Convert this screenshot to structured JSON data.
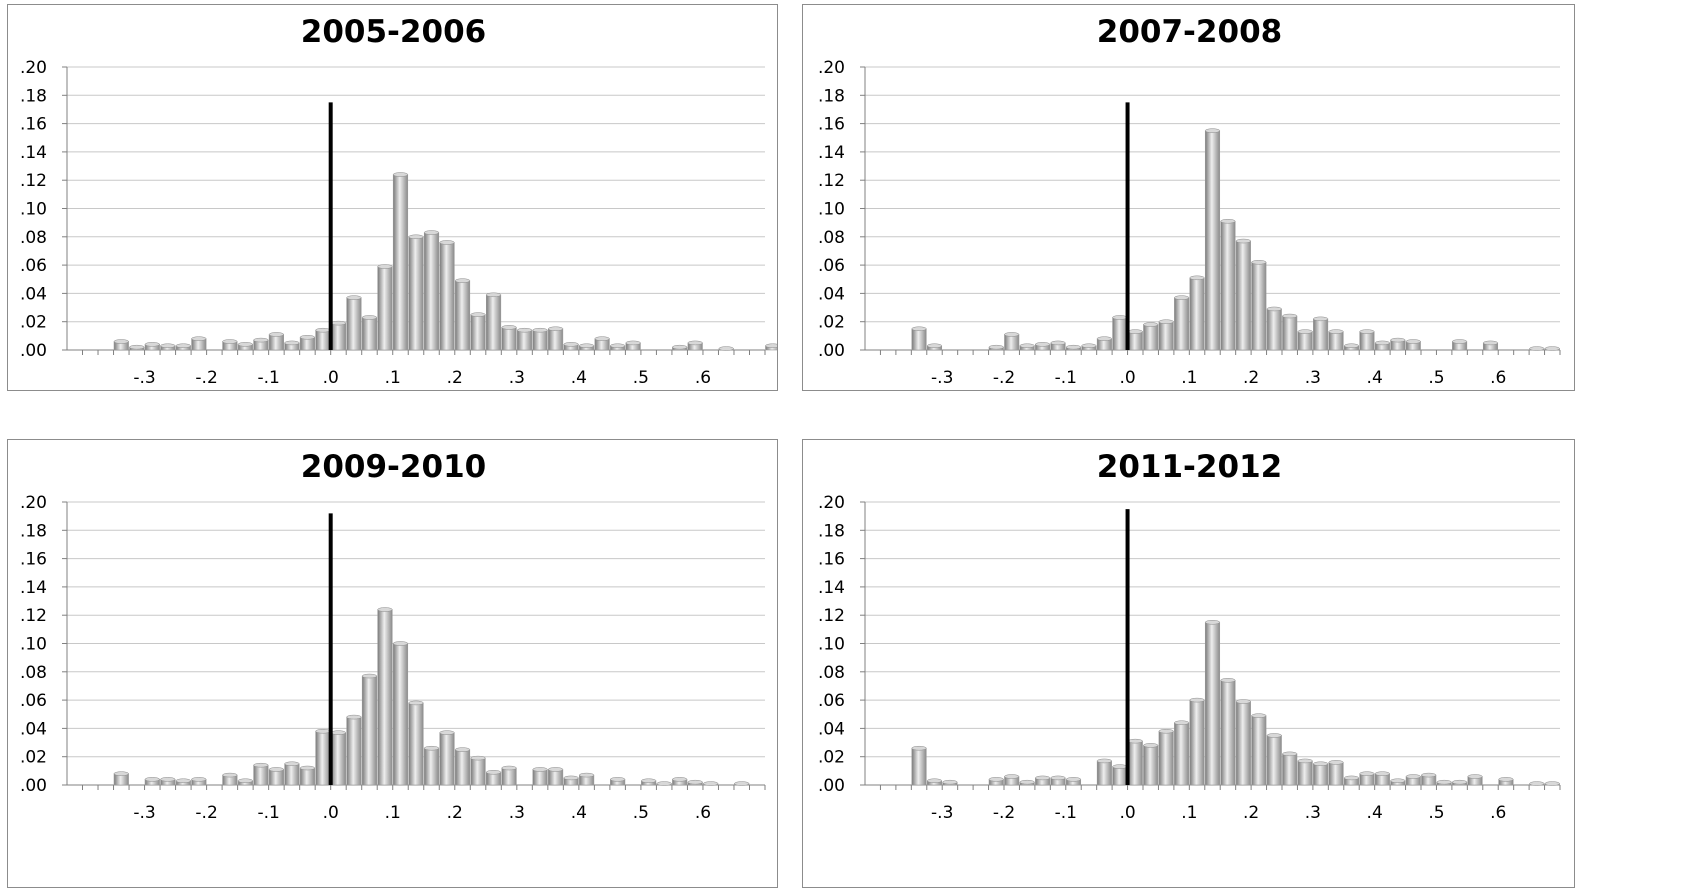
{
  "chart_data": [
    {
      "type": "bar",
      "title": "2005-2006",
      "xlabel": "",
      "ylabel": "",
      "ylim": [
        0,
        0.2
      ],
      "xlim": [
        -0.425,
        0.7
      ],
      "bin_width": 0.025,
      "x_start": -0.4,
      "y_ticks": [
        ".00",
        ".02",
        ".04",
        ".06",
        ".08",
        ".10",
        ".12",
        ".14",
        ".16",
        ".18",
        ".20"
      ],
      "x_tick_values": [
        -0.3,
        -0.2,
        -0.1,
        0.0,
        0.1,
        0.2,
        0.3,
        0.4,
        0.5,
        0.6
      ],
      "x_tick_labels": [
        "-.3",
        "-.2",
        "-.1",
        ".0",
        ".1",
        ".2",
        ".3",
        ".4",
        ".5",
        ".6"
      ],
      "reference_line": {
        "x": 0.0,
        "y_top": 0.175
      },
      "grid": true,
      "values": [
        0,
        0,
        0.006,
        0.002,
        0.004,
        0.003,
        0.003,
        0.008,
        0,
        0.006,
        0.004,
        0.007,
        0.011,
        0.005,
        0.009,
        0.014,
        0.019,
        0.037,
        0.023,
        0.059,
        0.124,
        0.08,
        0.083,
        0.076,
        0.049,
        0.025,
        0.039,
        0.016,
        0.014,
        0.014,
        0.015,
        0.004,
        0.003,
        0.008,
        0.003,
        0.005,
        0,
        0,
        0.002,
        0.005,
        0,
        0.001,
        0,
        0,
        0.003,
        0.003,
        0,
        0,
        0,
        0,
        0,
        0.005
      ]
    },
    {
      "type": "bar",
      "title": "2007-2008",
      "xlabel": "",
      "ylabel": "",
      "ylim": [
        0,
        0.2
      ],
      "xlim": [
        -0.425,
        0.7
      ],
      "bin_width": 0.025,
      "x_start": -0.4,
      "y_ticks": [
        ".00",
        ".02",
        ".04",
        ".06",
        ".08",
        ".10",
        ".12",
        ".14",
        ".16",
        ".18",
        ".20"
      ],
      "x_tick_values": [
        -0.3,
        -0.2,
        -0.1,
        0.0,
        0.1,
        0.2,
        0.3,
        0.4,
        0.5,
        0.6
      ],
      "x_tick_labels": [
        "-.3",
        "-.2",
        "-.1",
        ".0",
        ".1",
        ".2",
        ".3",
        ".4",
        ".5",
        ".6"
      ],
      "reference_line": {
        "x": 0.0,
        "y_top": 0.175
      },
      "grid": true,
      "values": [
        0,
        0,
        0.015,
        0.003,
        0,
        0,
        0,
        0.002,
        0.011,
        0.003,
        0.004,
        0.005,
        0.002,
        0.003,
        0.008,
        0.023,
        0.013,
        0.018,
        0.02,
        0.037,
        0.051,
        0.155,
        0.091,
        0.077,
        0.062,
        0.029,
        0.024,
        0.013,
        0.022,
        0.013,
        0.003,
        0.013,
        0.005,
        0.007,
        0.006,
        0,
        0,
        0.006,
        0,
        0.005,
        0,
        0,
        0.001,
        0.001,
        0,
        0,
        0.004,
        0.004,
        0,
        0,
        0.002,
        0.008
      ]
    },
    {
      "type": "bar",
      "title": "2009-2010",
      "xlabel": "",
      "ylabel": "",
      "ylim": [
        0,
        0.2
      ],
      "xlim": [
        -0.425,
        0.7
      ],
      "bin_width": 0.025,
      "x_start": -0.4,
      "y_ticks": [
        ".00",
        ".02",
        ".04",
        ".06",
        ".08",
        ".10",
        ".12",
        ".14",
        ".16",
        ".18",
        ".20"
      ],
      "x_tick_values": [
        -0.3,
        -0.2,
        -0.1,
        0.0,
        0.1,
        0.2,
        0.3,
        0.4,
        0.5,
        0.6
      ],
      "x_tick_labels": [
        "-.3",
        "-.2",
        "-.1",
        ".0",
        ".1",
        ".2",
        ".3",
        ".4",
        ".5",
        ".6"
      ],
      "reference_line": {
        "x": 0.0,
        "y_top": 0.192
      },
      "grid": true,
      "values": [
        0,
        0,
        0.008,
        0,
        0.004,
        0.004,
        0.003,
        0.004,
        0,
        0.007,
        0.003,
        0.014,
        0.011,
        0.015,
        0.012,
        0.038,
        0.037,
        0.048,
        0.077,
        0.124,
        0.1,
        0.058,
        0.026,
        0.037,
        0.025,
        0.019,
        0.009,
        0.012,
        0,
        0.011,
        0.011,
        0.005,
        0.007,
        0,
        0.004,
        0,
        0.003,
        0.001,
        0.004,
        0.002,
        0.001,
        0,
        0.001,
        0,
        0,
        0,
        0,
        0,
        0,
        0,
        0,
        0.009
      ]
    },
    {
      "type": "bar",
      "title": "2011-2012",
      "xlabel": "",
      "ylabel": "",
      "ylim": [
        0,
        0.2
      ],
      "xlim": [
        -0.425,
        0.7
      ],
      "bin_width": 0.025,
      "x_start": -0.4,
      "y_ticks": [
        ".00",
        ".02",
        ".04",
        ".06",
        ".08",
        ".10",
        ".12",
        ".14",
        ".16",
        ".18",
        ".20"
      ],
      "x_tick_values": [
        -0.3,
        -0.2,
        -0.1,
        0.0,
        0.1,
        0.2,
        0.3,
        0.4,
        0.5,
        0.6
      ],
      "x_tick_labels": [
        "-.3",
        "-.2",
        "-.1",
        ".0",
        ".1",
        ".2",
        ".3",
        ".4",
        ".5",
        ".6"
      ],
      "reference_line": {
        "x": 0.0,
        "y_top": 0.195
      },
      "grid": true,
      "values": [
        0,
        0,
        0.026,
        0.003,
        0.002,
        0,
        0,
        0.004,
        0.006,
        0.002,
        0.005,
        0.005,
        0.004,
        0,
        0.017,
        0.013,
        0.031,
        0.028,
        0.038,
        0.044,
        0.06,
        0.115,
        0.074,
        0.059,
        0.049,
        0.035,
        0.022,
        0.017,
        0.015,
        0.016,
        0.005,
        0.008,
        0.008,
        0.003,
        0.006,
        0.007,
        0.002,
        0.002,
        0.006,
        0,
        0.004,
        0,
        0.001,
        0.001,
        0,
        0,
        0,
        0,
        0,
        0,
        0,
        0.003
      ]
    }
  ]
}
